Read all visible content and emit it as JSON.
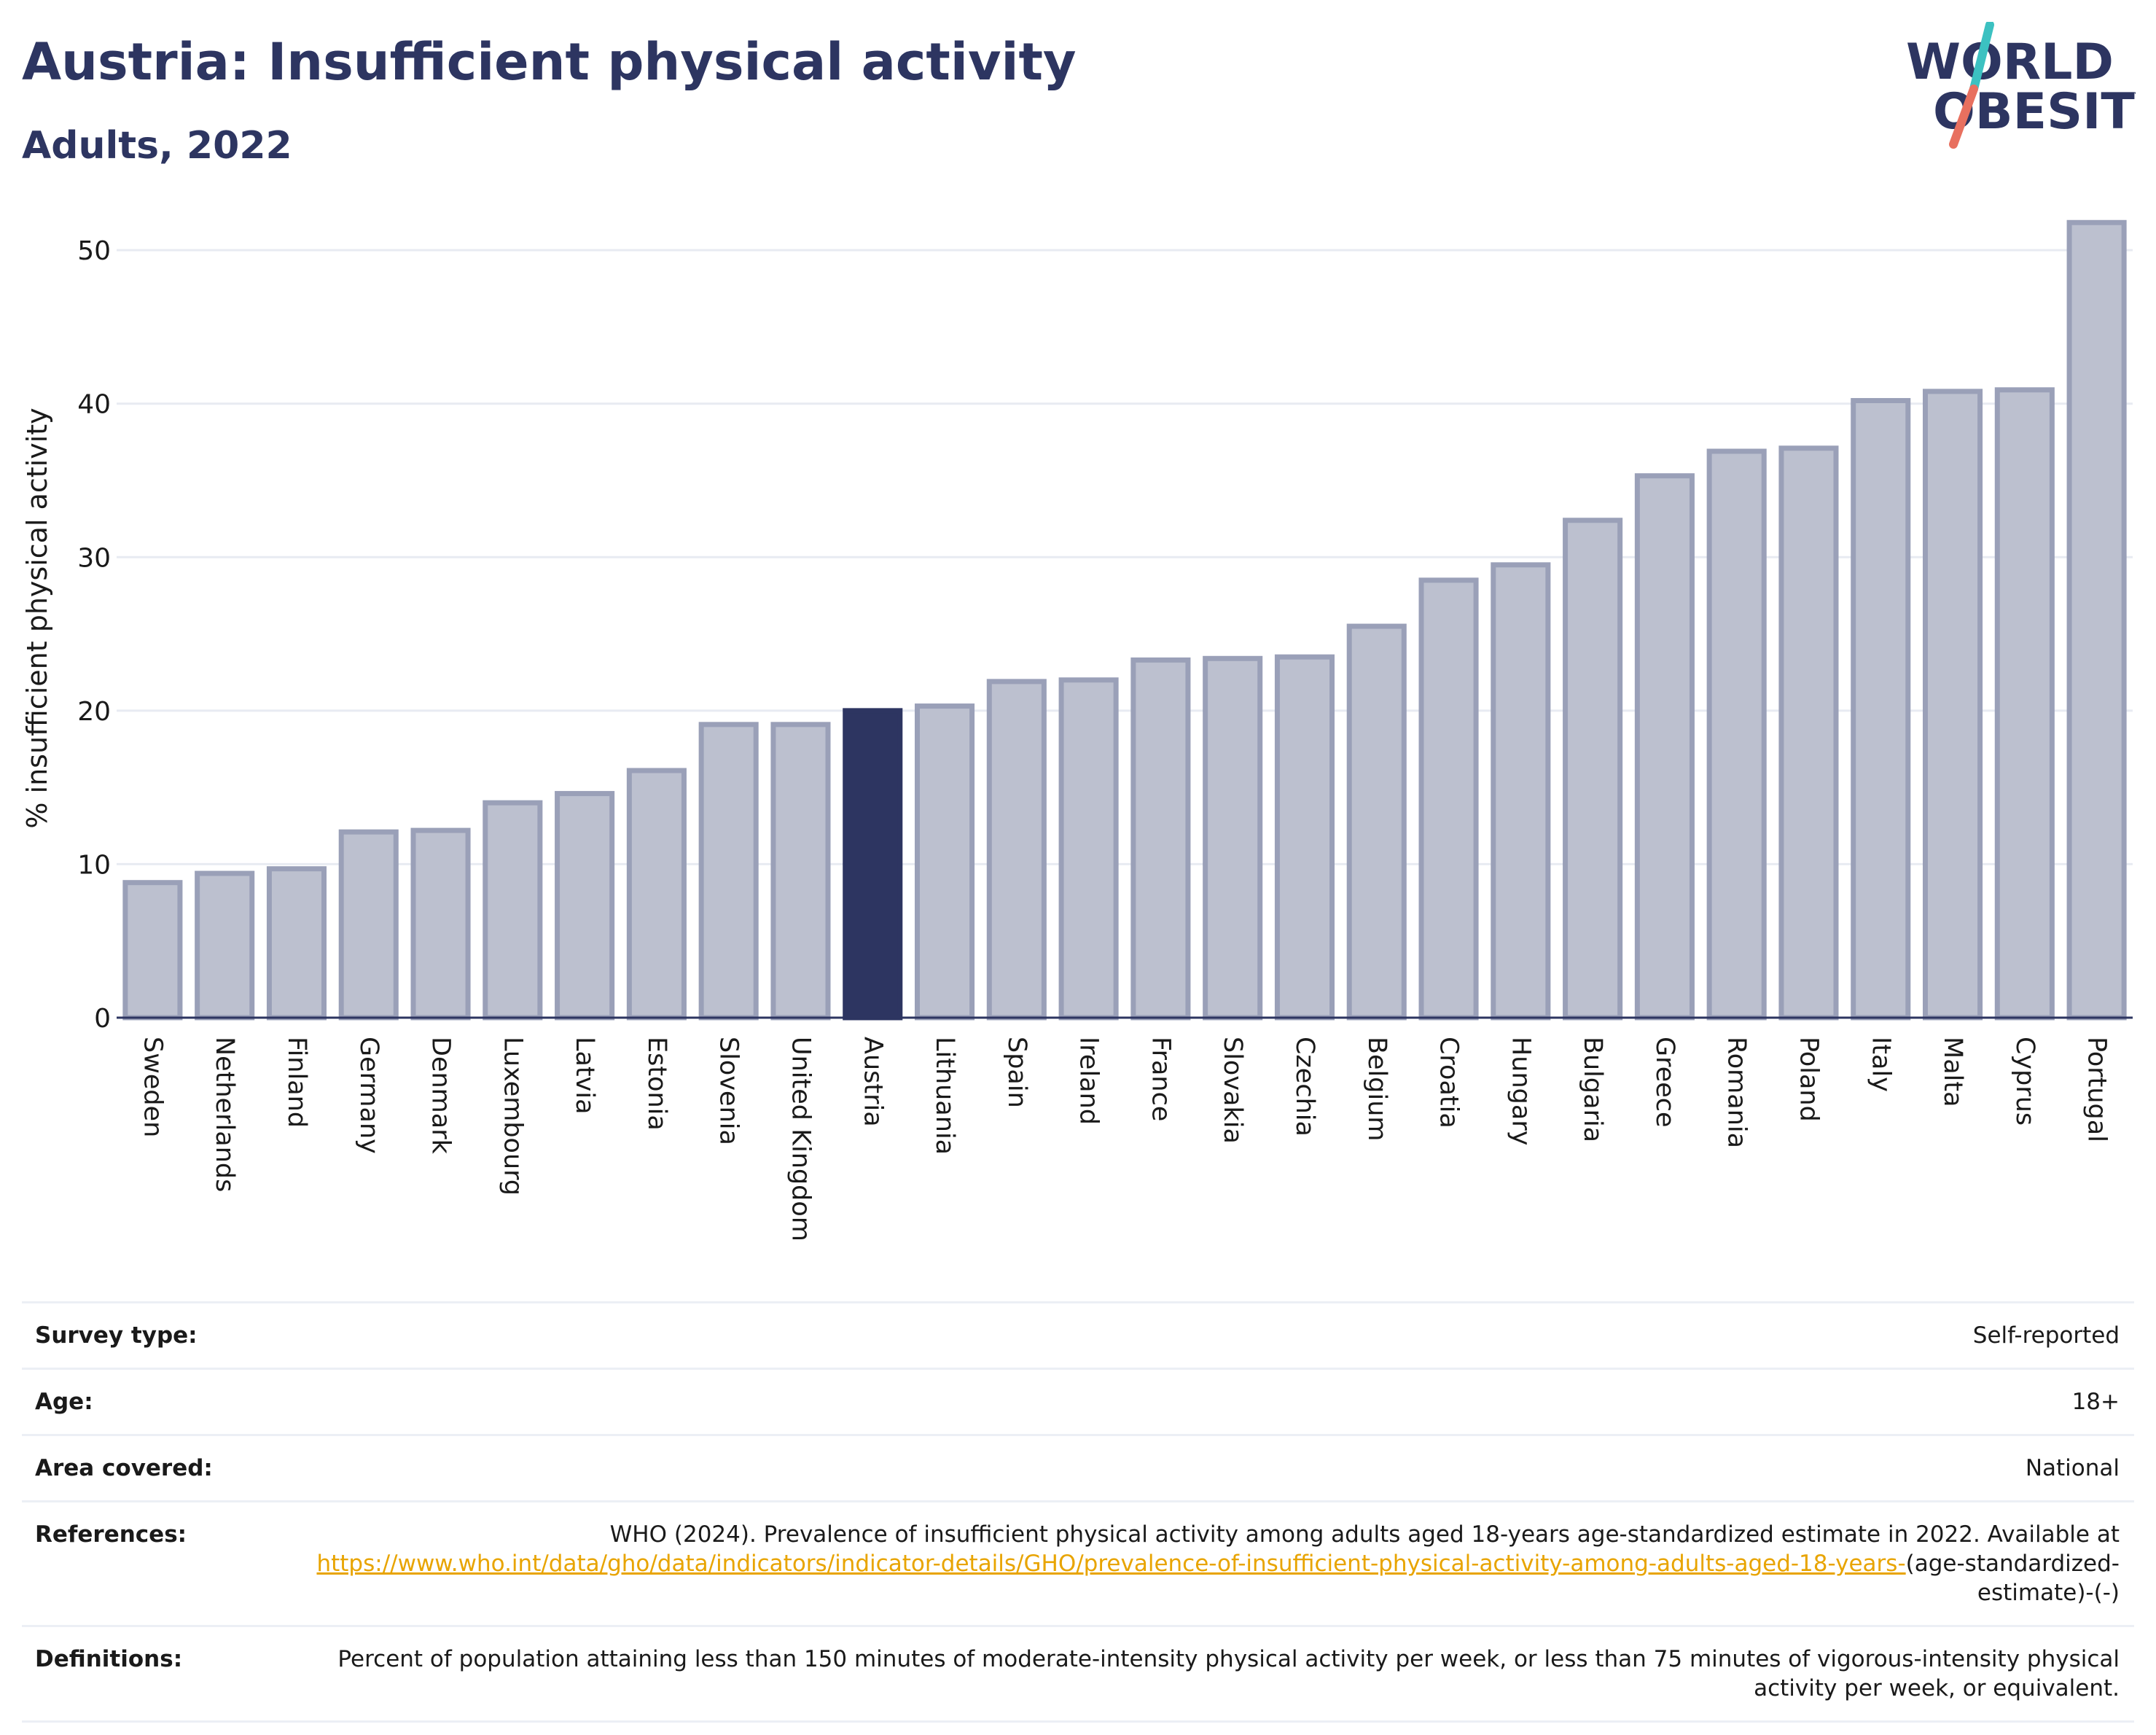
{
  "header": {
    "title": "Austria: Insufficient physical activity",
    "subtitle": "Adults, 2022"
  },
  "logo": {
    "line1": "WORLD",
    "line2": "OBESITY",
    "navy": "#2d3561",
    "accent_red": "#e8705f",
    "accent_teal": "#3cc1c1"
  },
  "colors": {
    "bar_fill": "#bcc0cf",
    "bar_stroke": "#9aa0b8",
    "highlight": "#2d3561",
    "grid": "#e8ebf2",
    "axis_text": "#1a1a1a"
  },
  "chart_data": {
    "type": "bar",
    "ylabel": "% insufficient physical activity",
    "ylim": [
      0,
      53
    ],
    "yticks": [
      0,
      10,
      20,
      30,
      40,
      50
    ],
    "grid": "horizontal",
    "highlight_category": "Austria",
    "categories": [
      "Sweden",
      "Netherlands",
      "Finland",
      "Germany",
      "Denmark",
      "Luxembourg",
      "Latvia",
      "Estonia",
      "Slovenia",
      "United Kingdom",
      "Austria",
      "Lithuania",
      "Spain",
      "Ireland",
      "France",
      "Slovakia",
      "Czechia",
      "Belgium",
      "Croatia",
      "Hungary",
      "Bulgaria",
      "Greece",
      "Romania",
      "Poland",
      "Italy",
      "Malta",
      "Cyprus",
      "Portugal"
    ],
    "values": [
      8.8,
      9.4,
      9.7,
      12.1,
      12.2,
      14.0,
      14.6,
      16.1,
      19.1,
      19.1,
      20.0,
      20.3,
      21.9,
      22.0,
      23.3,
      23.4,
      23.5,
      25.5,
      28.5,
      29.5,
      32.4,
      35.3,
      36.9,
      37.1,
      40.2,
      40.8,
      40.9,
      51.8
    ]
  },
  "info": {
    "survey_type": {
      "label": "Survey type:",
      "value": "Self-reported"
    },
    "age": {
      "label": "Age:",
      "value": "18+"
    },
    "area": {
      "label": "Area covered:",
      "value": "National"
    },
    "references": {
      "label": "References:",
      "text_before": "WHO (2024). Prevalence of insufficient physical activity among adults aged 18-years age-standardized estimate in 2022. Available at ",
      "link": "https://www.who.int/data/gho/data/indicators/indicator-details/GHO/prevalence-of-insufficient-physical-activity-among-adults-aged-18-years-",
      "text_after": "(age-standardized-estimate)-(-)"
    },
    "definitions": {
      "label": "Definitions:",
      "value": "Percent of population attaining less than 150 minutes of moderate-intensity physical activity per week, or less than 75 minutes of vigorous-intensity physical activity per week, or equivalent."
    }
  }
}
